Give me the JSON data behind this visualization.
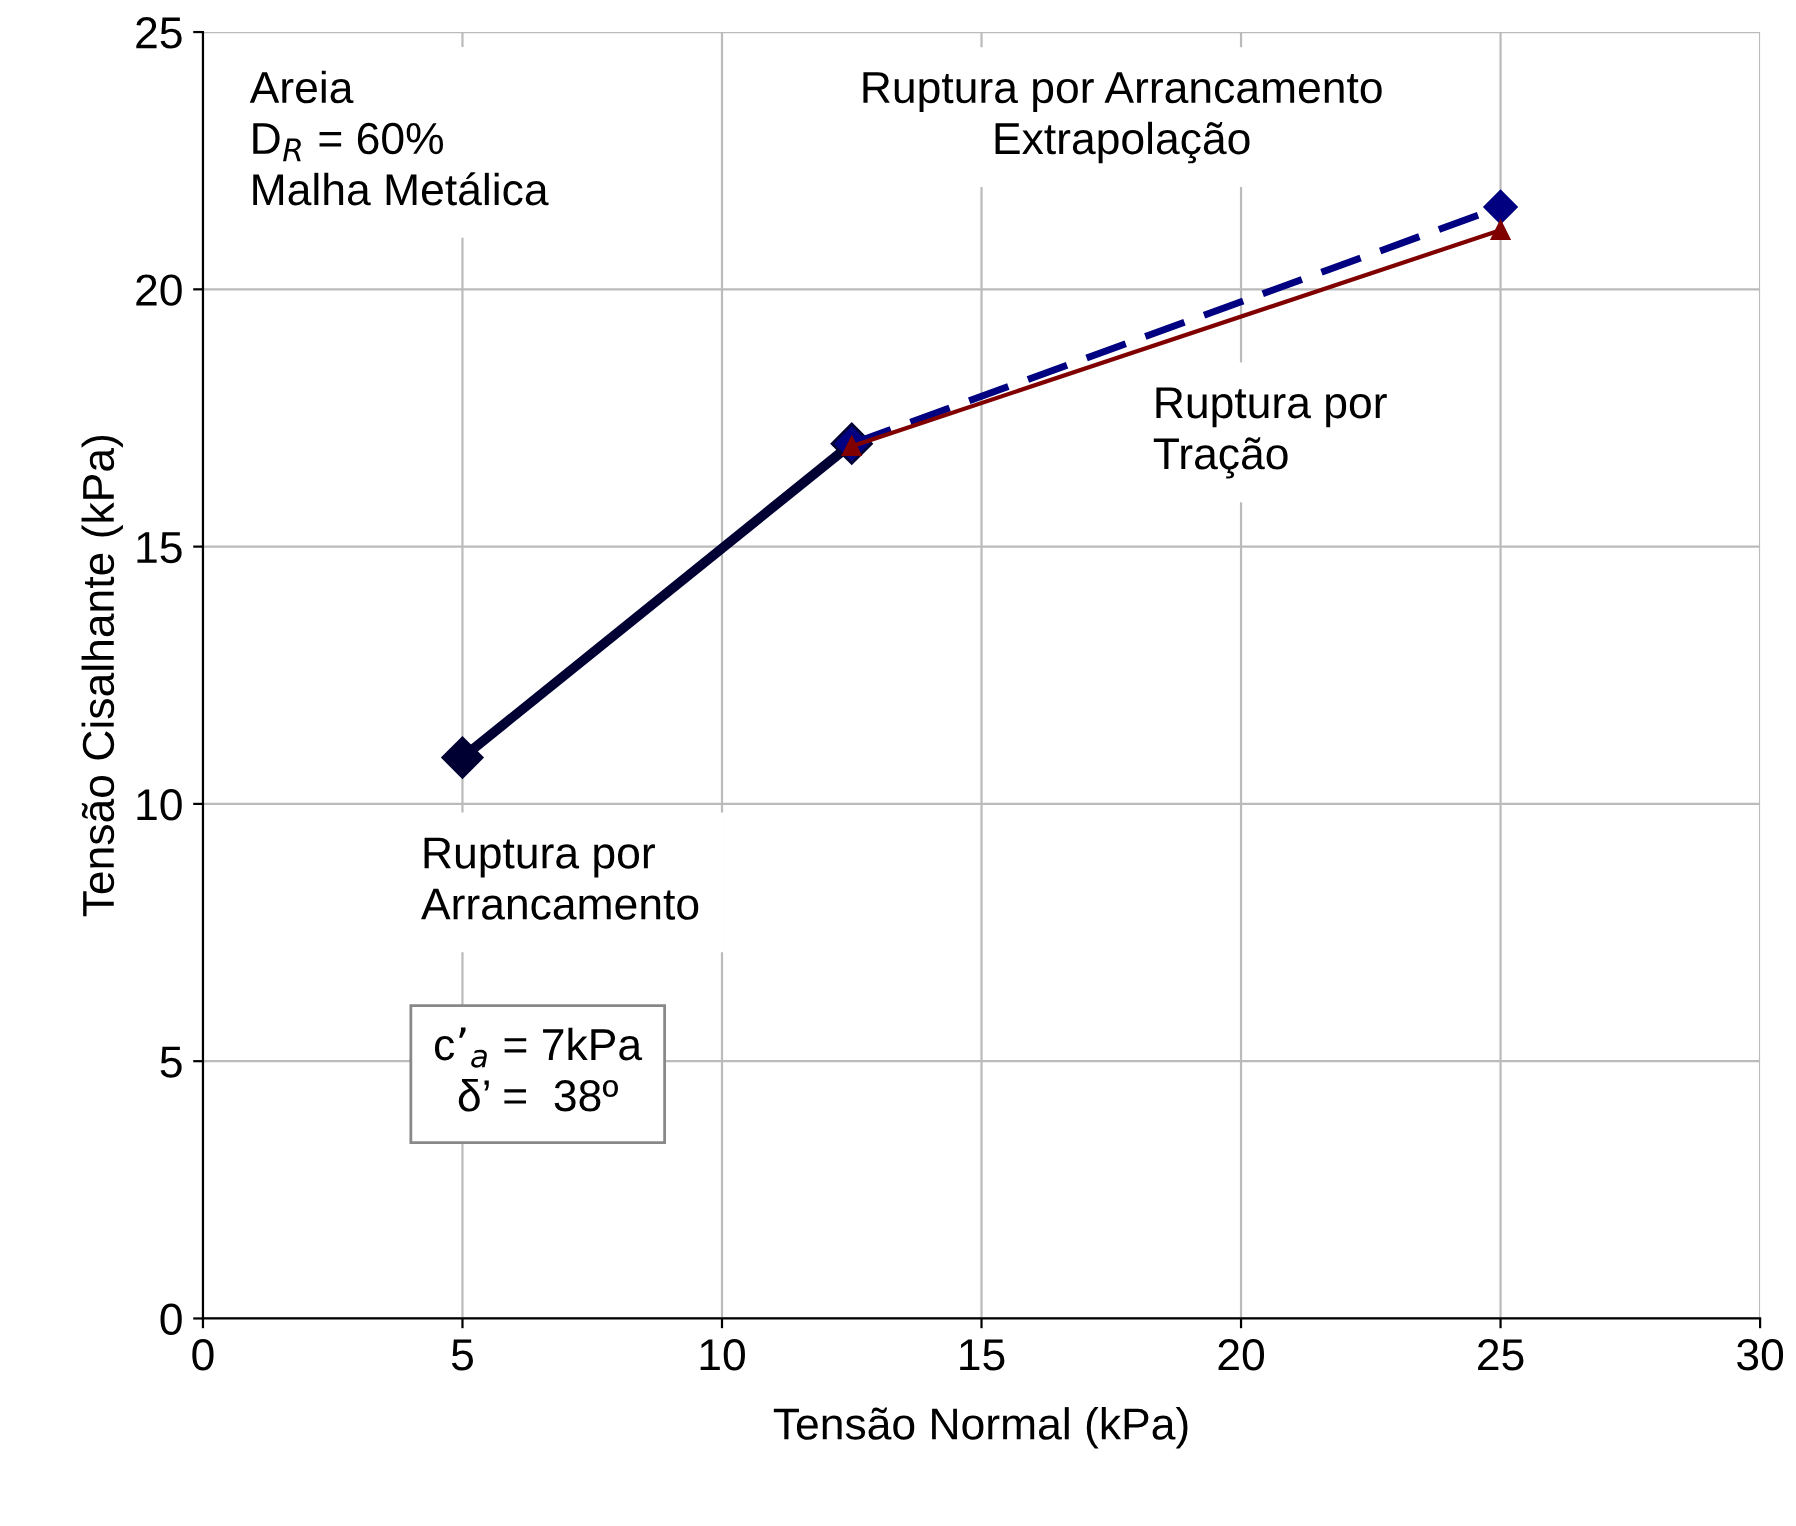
{
  "chart_data": {
    "type": "line",
    "xlabel": "Tensão Normal (kPa)",
    "ylabel": "Tensão Cisalhante (kPa)",
    "xlim": [
      0,
      30
    ],
    "ylim": [
      0,
      25
    ],
    "xticks": [
      0,
      5,
      10,
      15,
      20,
      25,
      30
    ],
    "yticks": [
      0,
      5,
      10,
      15,
      20,
      25
    ],
    "grid": true,
    "legend": false,
    "series": [
      {
        "color": "#000033",
        "x": [
          5,
          12.5
        ],
        "values": [
          10.9,
          17.0
        ],
        "marker": "diamond",
        "line_style": "solid"
      },
      {
        "color": "#000080",
        "x": [
          12.5,
          25
        ],
        "values": [
          17.0,
          21.6
        ],
        "marker": "diamond",
        "line_style": "dashed"
      },
      {
        "color": "#800000",
        "x": [
          12.5,
          25
        ],
        "values": [
          16.95,
          21.15
        ],
        "marker": "triangle",
        "line_style": "solid"
      }
    ],
    "annotations": [
      "Areia\nD$_{R}$ = 60%\nMalha Metálica",
      "Ruptura por Arrancamento\nExtrapolação",
      "Ruptura por\nTração",
      "Ruptura por\nArrancamento",
      "c’$_{a}$ = 7kPa\nδ’ =  38º"
    ]
  }
}
